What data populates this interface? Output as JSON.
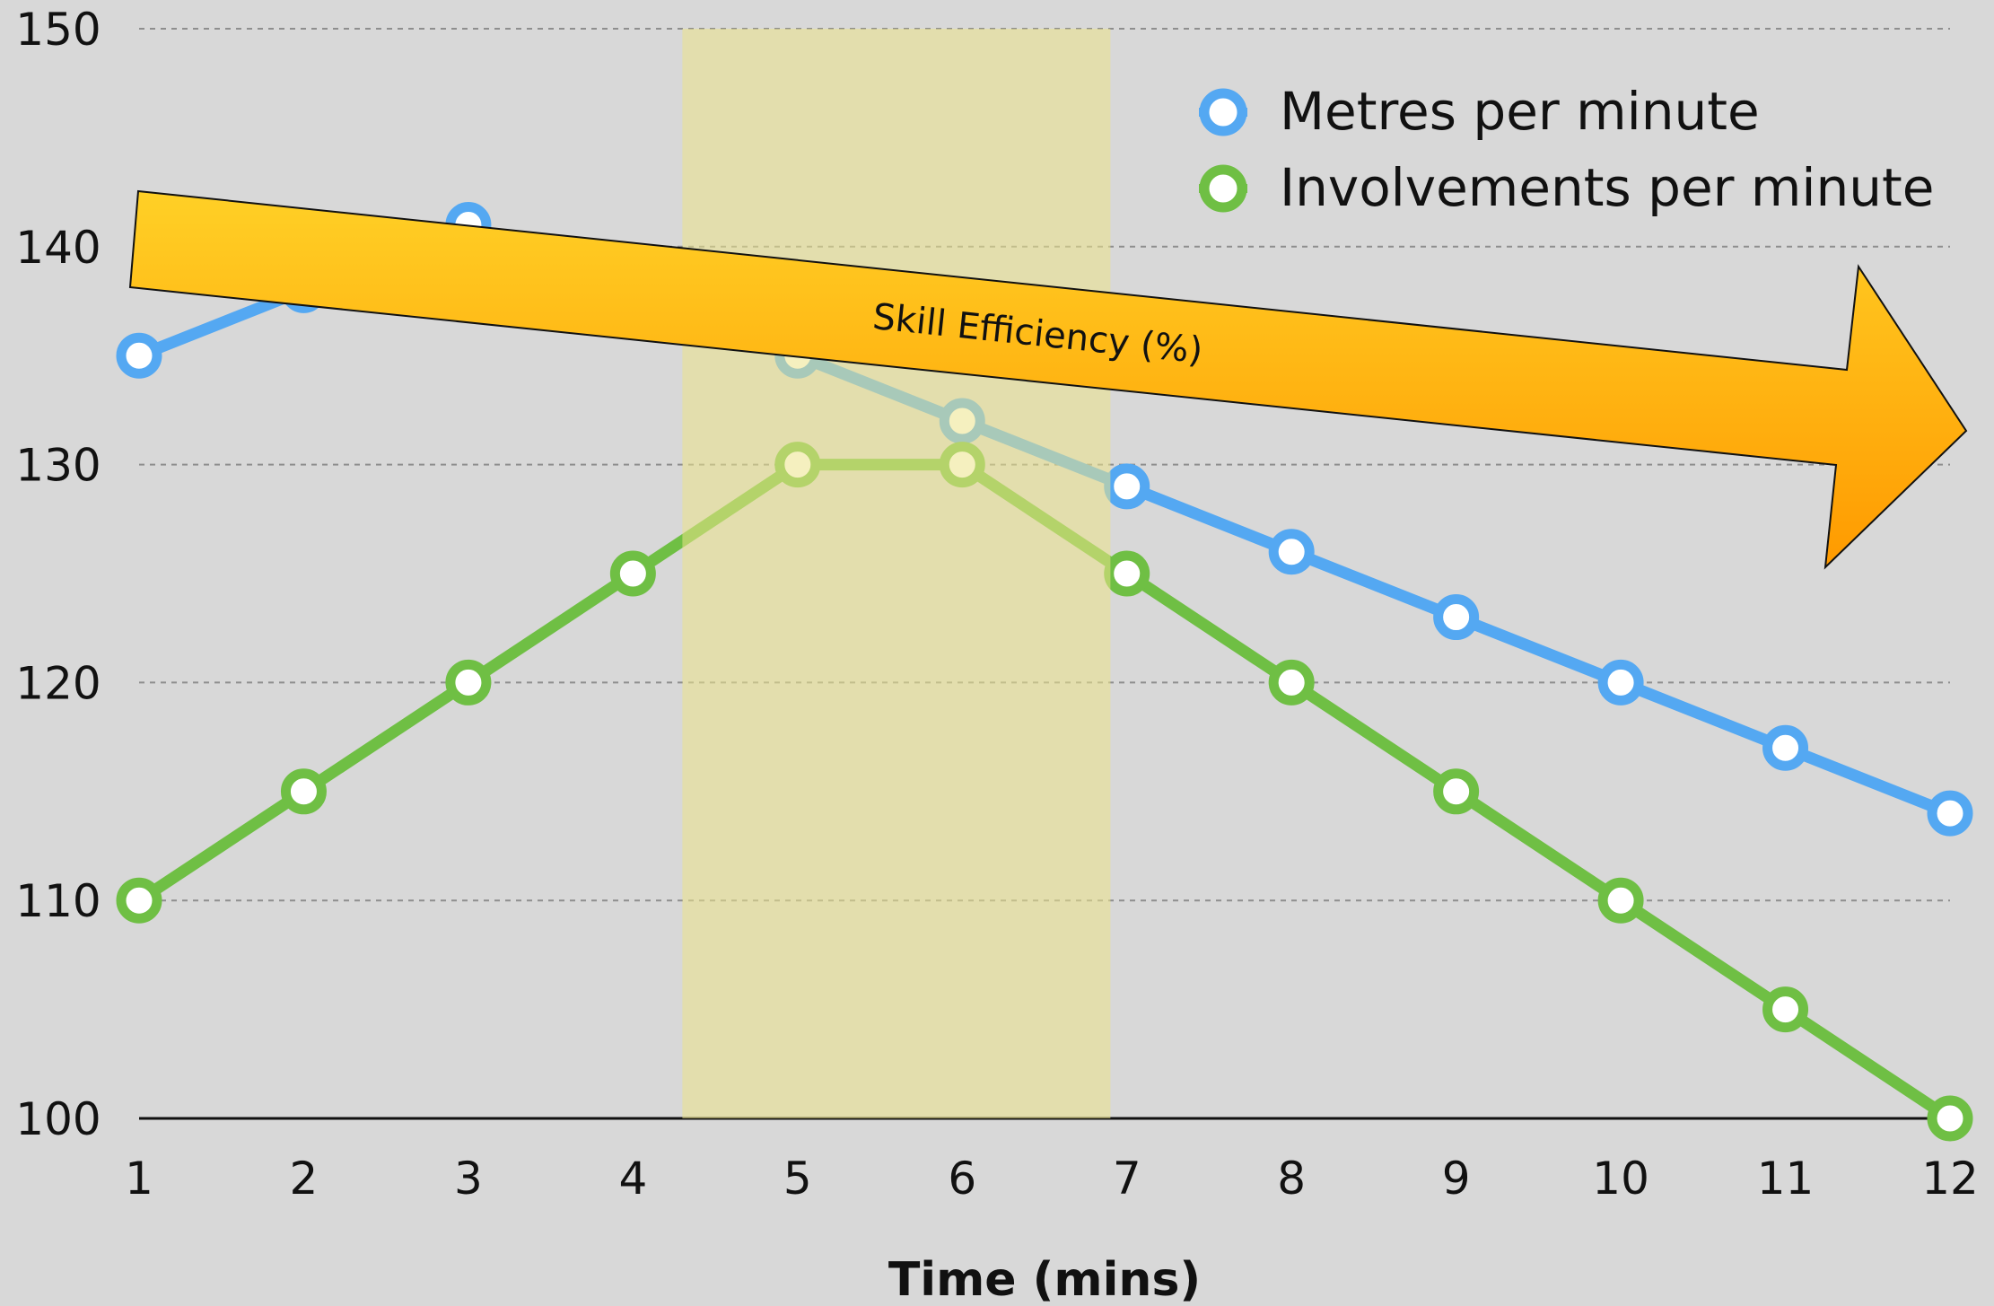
{
  "chart_data": {
    "type": "line",
    "xlabel": "Time (mins)",
    "ylabel": "",
    "categories": [
      "1",
      "2",
      "3",
      "4",
      "5",
      "6",
      "7",
      "8",
      "9",
      "10",
      "11",
      "12"
    ],
    "ylim": [
      100,
      150
    ],
    "yticks": [
      "100",
      "110",
      "120",
      "130",
      "140",
      "150"
    ],
    "grid": true,
    "legend_position": "top-right",
    "series": [
      {
        "name": "Metres per minute",
        "color": "#54a8f2",
        "values": [
          135,
          138,
          141,
          138,
          135,
          132,
          129,
          126,
          123,
          120,
          117,
          114
        ]
      },
      {
        "name": "Involvements per minute",
        "color": "#6fbf44",
        "values": [
          110,
          115,
          120,
          125,
          130,
          130,
          125,
          120,
          115,
          110,
          105,
          100
        ]
      }
    ],
    "highlight_band": {
      "x_from": 4.3,
      "x_to": 6.9,
      "color": "#ece38a"
    },
    "annotation": {
      "label": "Skill Efficiency (%)",
      "shape": "downward-right-arrow",
      "colors": [
        "#ffd026",
        "#ff9a00"
      ]
    }
  }
}
